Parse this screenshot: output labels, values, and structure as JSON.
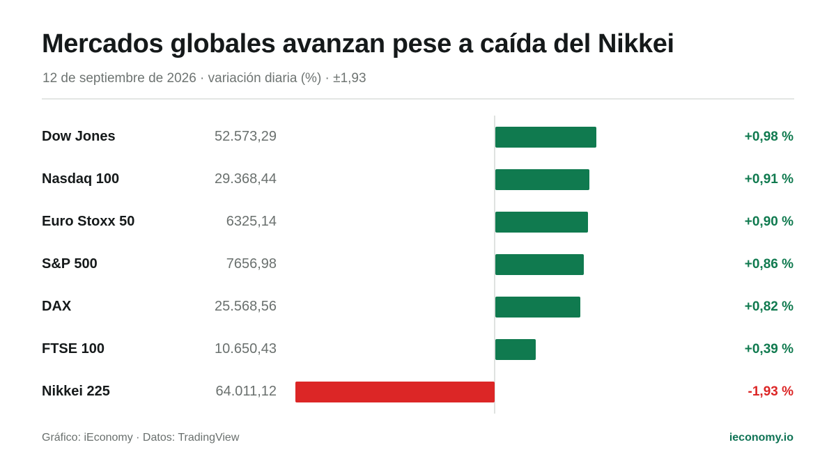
{
  "header": {
    "title": "Mercados globales avanzan pese a caída del Nikkei",
    "subtitle": "12 de septiembre de 2026 · variación diaria (%) · ±1,93"
  },
  "footer": {
    "source": "Gráfico: iEconomy · Datos: TradingView",
    "brand": "ieconomy.io"
  },
  "colors": {
    "positive": "#107a4f",
    "negative": "#dc2626",
    "positive_text": "#107a4f",
    "negative_text": "#dc2626"
  },
  "chart_data": {
    "type": "bar",
    "orientation": "horizontal",
    "title": "Mercados globales avanzan pese a caída del Nikkei",
    "subtitle": "12 de septiembre de 2026 · variación diaria (%) · ±1,93",
    "xlim": [
      -1.93,
      1.93
    ],
    "grid": false,
    "rows": [
      {
        "name": "Dow Jones",
        "level": "52.573,29",
        "change": 0.98,
        "change_label": "+0,98 %"
      },
      {
        "name": "Nasdaq 100",
        "level": "29.368,44",
        "change": 0.91,
        "change_label": "+0,91 %"
      },
      {
        "name": "Euro Stoxx 50",
        "level": "6325,14",
        "change": 0.9,
        "change_label": "+0,90 %"
      },
      {
        "name": "S&P 500",
        "level": "7656,98",
        "change": 0.86,
        "change_label": "+0,86 %"
      },
      {
        "name": "DAX",
        "level": "25.568,56",
        "change": 0.82,
        "change_label": "+0,82 %"
      },
      {
        "name": "FTSE 100",
        "level": "10.650,43",
        "change": 0.39,
        "change_label": "+0,39 %"
      },
      {
        "name": "Nikkei 225",
        "level": "64.011,12",
        "change": -1.93,
        "change_label": "-1,93 %"
      }
    ]
  }
}
